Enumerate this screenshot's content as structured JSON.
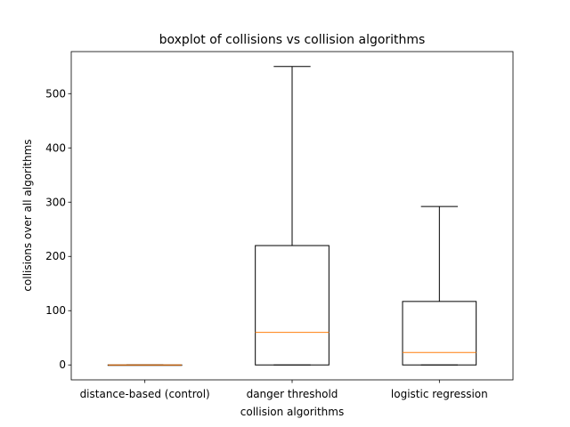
{
  "chart_data": {
    "type": "boxplot",
    "title": "boxplot of collisions vs collision algorithms",
    "xlabel": "collision algorithms",
    "ylabel": "collisions over all algorithms",
    "ylim": [
      -27.5,
      577.5
    ],
    "yticks": [
      0,
      100,
      200,
      300,
      400,
      500
    ],
    "ytick_labels": [
      "0",
      "100",
      "200",
      "300",
      "400",
      "500"
    ],
    "grid": false,
    "categories": [
      "distance-based (control)",
      "danger threshold",
      "logistic regression"
    ],
    "boxes": [
      {
        "category": "distance-based (control)",
        "whisker_low": 0,
        "q1": 0,
        "median": 0,
        "q3": 0,
        "whisker_high": 0
      },
      {
        "category": "danger threshold",
        "whisker_low": 0,
        "q1": 0,
        "median": 60,
        "q3": 220,
        "whisker_high": 550
      },
      {
        "category": "logistic regression",
        "whisker_low": 0,
        "q1": 0,
        "median": 23,
        "q3": 117,
        "whisker_high": 292
      }
    ],
    "colors": {
      "box": "#000000",
      "median": "#ff7f0e"
    }
  }
}
